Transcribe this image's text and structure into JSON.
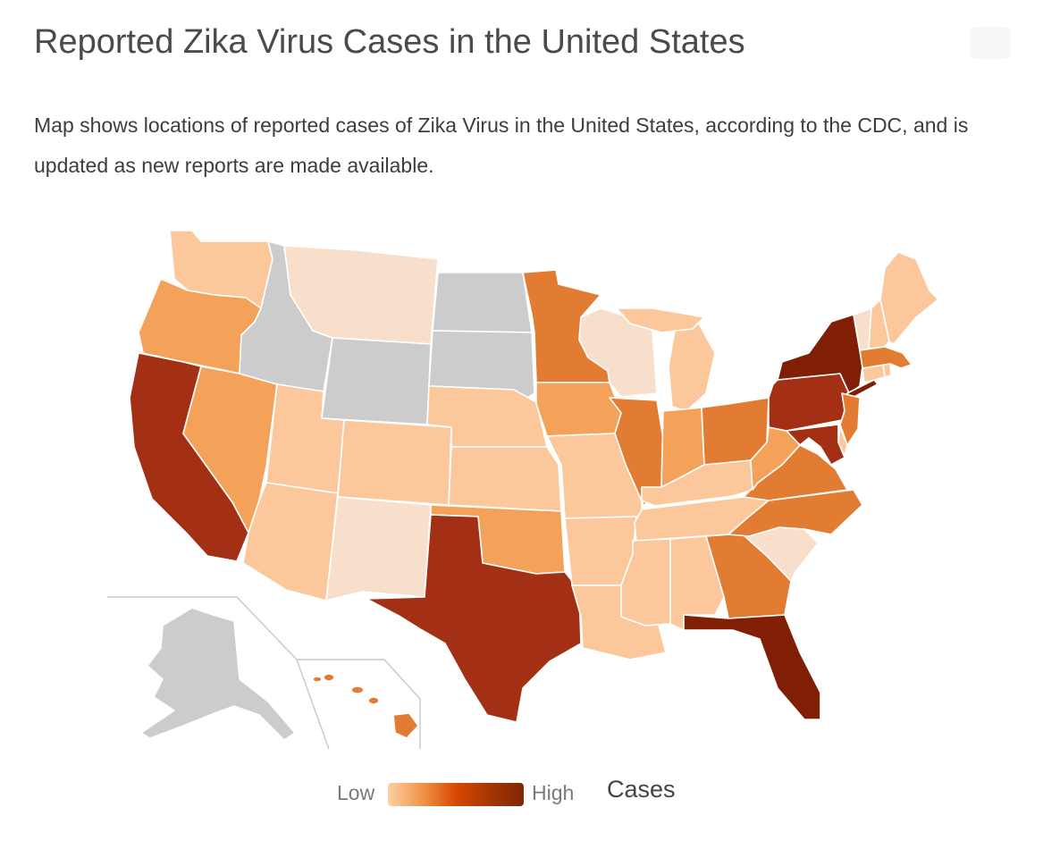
{
  "header": {
    "title": "Reported Zika Virus Cases in the United States",
    "subtitle": "Map shows locations of reported cases of Zika Virus in the United States, according to the CDC, and is updated as new reports are made available.",
    "edit_icon": "pencil-icon"
  },
  "legend": {
    "low_label": "Low",
    "high_label": "High",
    "title": "Cases",
    "gradient": [
      "#fdd0a2",
      "#f0954a",
      "#d94801",
      "#a63603",
      "#7f2704"
    ]
  },
  "colors": {
    "no_data": "#cccccc",
    "level0": "#f8dfcb",
    "level1": "#fcc79b",
    "level2": "#f4a25a",
    "level3": "#e37c33",
    "level4": "#a33015",
    "level5": "#801f05"
  },
  "map_data": {
    "type": "choropleth",
    "region": "United States",
    "states": [
      {
        "state": "WA",
        "level": 1
      },
      {
        "state": "OR",
        "level": 2
      },
      {
        "state": "CA",
        "level": 4
      },
      {
        "state": "NV",
        "level": 2
      },
      {
        "state": "ID",
        "level": null
      },
      {
        "state": "MT",
        "level": 0
      },
      {
        "state": "WY",
        "level": null
      },
      {
        "state": "UT",
        "level": 1
      },
      {
        "state": "AZ",
        "level": 1
      },
      {
        "state": "CO",
        "level": 1
      },
      {
        "state": "NM",
        "level": 0
      },
      {
        "state": "ND",
        "level": null
      },
      {
        "state": "SD",
        "level": null
      },
      {
        "state": "NE",
        "level": 1
      },
      {
        "state": "KS",
        "level": 1
      },
      {
        "state": "OK",
        "level": 2
      },
      {
        "state": "TX",
        "level": 4
      },
      {
        "state": "MN",
        "level": 3
      },
      {
        "state": "IA",
        "level": 2
      },
      {
        "state": "MO",
        "level": 1
      },
      {
        "state": "AR",
        "level": 1
      },
      {
        "state": "LA",
        "level": 1
      },
      {
        "state": "WI",
        "level": 0
      },
      {
        "state": "IL",
        "level": 3
      },
      {
        "state": "MI",
        "level": 1
      },
      {
        "state": "IN",
        "level": 2
      },
      {
        "state": "OH",
        "level": 3
      },
      {
        "state": "KY",
        "level": 1
      },
      {
        "state": "TN",
        "level": 1
      },
      {
        "state": "MS",
        "level": 1
      },
      {
        "state": "AL",
        "level": 1
      },
      {
        "state": "GA",
        "level": 3
      },
      {
        "state": "FL",
        "level": 5
      },
      {
        "state": "SC",
        "level": 0
      },
      {
        "state": "NC",
        "level": 3
      },
      {
        "state": "VA",
        "level": 3
      },
      {
        "state": "WV",
        "level": 2
      },
      {
        "state": "PA",
        "level": 4
      },
      {
        "state": "NY",
        "level": 5
      },
      {
        "state": "NJ",
        "level": 3
      },
      {
        "state": "DE",
        "level": 1
      },
      {
        "state": "MD",
        "level": 4
      },
      {
        "state": "CT",
        "level": 1
      },
      {
        "state": "RI",
        "level": 1
      },
      {
        "state": "MA",
        "level": 3
      },
      {
        "state": "VT",
        "level": 0
      },
      {
        "state": "NH",
        "level": 1
      },
      {
        "state": "ME",
        "level": 1
      },
      {
        "state": "AK",
        "level": null
      },
      {
        "state": "HI",
        "level": 3
      }
    ]
  }
}
